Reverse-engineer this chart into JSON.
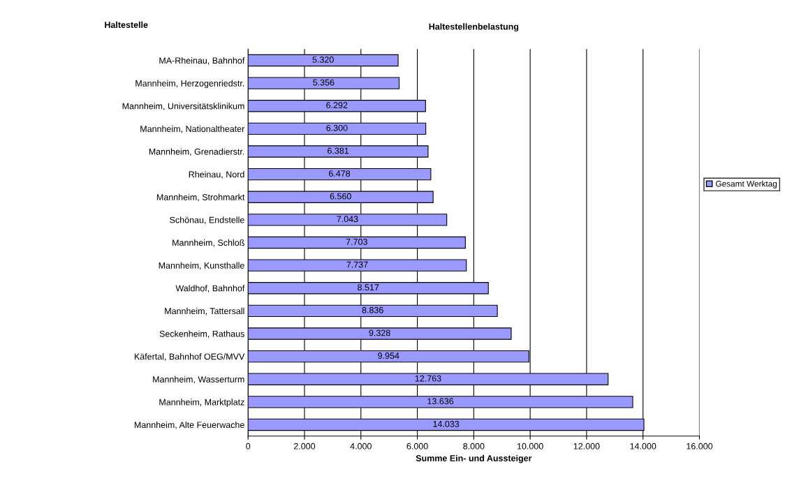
{
  "chart_data": {
    "type": "bar",
    "orientation": "horizontal",
    "title": "Haltestellenbelastung",
    "ylabel": "Haltestelle",
    "xlabel": "Summe Ein- und Aussteiger",
    "categories": [
      "MA-Rheinau, Bahnhof",
      "Mannheim, Herzogenriedstr.",
      "Mannheim, Universitätsklinikum",
      "Mannheim, Nationaltheater",
      "Mannheim, Grenadierstr.",
      "Rheinau, Nord",
      "Mannheim, Strohmarkt",
      "Schönau, Endstelle",
      "Mannheim, Schloß",
      "Mannheim, Kunsthalle",
      "Waldhof, Bahnhof",
      "Mannheim, Tattersall",
      "Seckenheim, Rathaus",
      "Käfertal, Bahnhof OEG/MVV",
      "Mannheim, Wasserturm",
      "Mannheim, Marktplatz",
      "Mannheim, Alte Feuerwache"
    ],
    "series": [
      {
        "name": "Gesamt Werktag",
        "color": "#9999ff",
        "values": [
          5320,
          5356,
          6292,
          6300,
          6381,
          6478,
          6560,
          7043,
          7703,
          7737,
          8517,
          8836,
          9328,
          9954,
          12763,
          13636,
          14033
        ],
        "value_labels": [
          "5.320",
          "5.356",
          "6.292",
          "6.300",
          "6.381",
          "6.478",
          "6.560",
          "7.043",
          "7.703",
          "7.737",
          "8.517",
          "8.836",
          "9.328",
          "9.954",
          "12.763",
          "13.636",
          "14.033"
        ]
      }
    ],
    "xlim": [
      0,
      16000
    ],
    "xticks": [
      0,
      {
        "value": 2000,
        "label": "2.000"
      },
      {
        "value": 4000,
        "label": "4.000"
      },
      {
        "value": 6000,
        "label": "6.000"
      },
      {
        "value": 8000,
        "label": "8.000"
      },
      {
        "value": 10000,
        "label": "10.000"
      },
      {
        "value": 12000,
        "label": "12.000"
      },
      {
        "value": 14000,
        "label": "14.000"
      },
      {
        "value": 16000,
        "label": "16.000"
      }
    ],
    "grid": "x",
    "legend": "right"
  }
}
